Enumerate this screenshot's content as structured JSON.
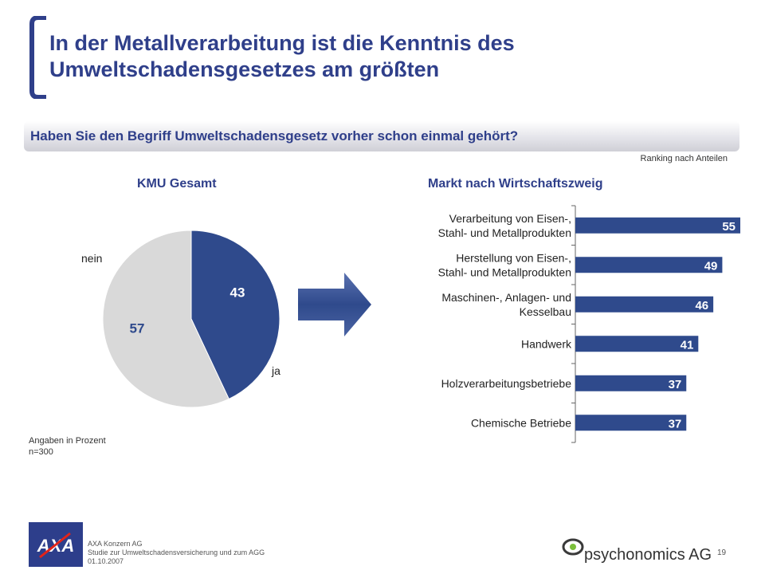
{
  "title": "In der Metallverarbeitung ist die Kenntnis des Umweltschadensgesetzes am größten",
  "question": "Haben Sie den Begriff Umweltschadensgesetz vorher schon einmal gehört?",
  "ranking_note": "Ranking nach Anteilen",
  "footnote": {
    "line1": "Angaben in Prozent",
    "line2": "n=300"
  },
  "footer": {
    "company": "AXA Konzern AG",
    "study": "Studie zur Umweltschadensversicherung und zum AGG",
    "date": "01.10.2007",
    "page": "19",
    "logo_left_text": "AXA",
    "logo_right_text": "psychonomics AG"
  },
  "colors": {
    "primary": "#2f4a8c",
    "title": "#2f3f8a",
    "pie_grey": "#d9d9d9"
  },
  "chart_data": [
    {
      "type": "pie",
      "title": "KMU Gesamt",
      "labels": [
        "ja",
        "nein"
      ],
      "values": [
        43,
        57
      ],
      "value_labels": [
        "43",
        "57"
      ],
      "colors": [
        "#2f4a8c",
        "#d9d9d9"
      ]
    },
    {
      "type": "bar",
      "orientation": "horizontal",
      "title": "Markt nach Wirtschaftszweig",
      "categories": [
        [
          "Verarbeitung von Eisen-,",
          "Stahl- und Metallprodukten"
        ],
        [
          "Herstellung von Eisen-,",
          "Stahl- und Metallprodukten"
        ],
        [
          "Maschinen-, Anlagen- und",
          "Kesselbau"
        ],
        [
          "Handwerk"
        ],
        [
          "Holzverarbeitungsbetriebe"
        ],
        [
          "Chemische Betriebe"
        ]
      ],
      "values": [
        55,
        49,
        46,
        41,
        37,
        37
      ],
      "color": "#2f4a8c"
    }
  ]
}
